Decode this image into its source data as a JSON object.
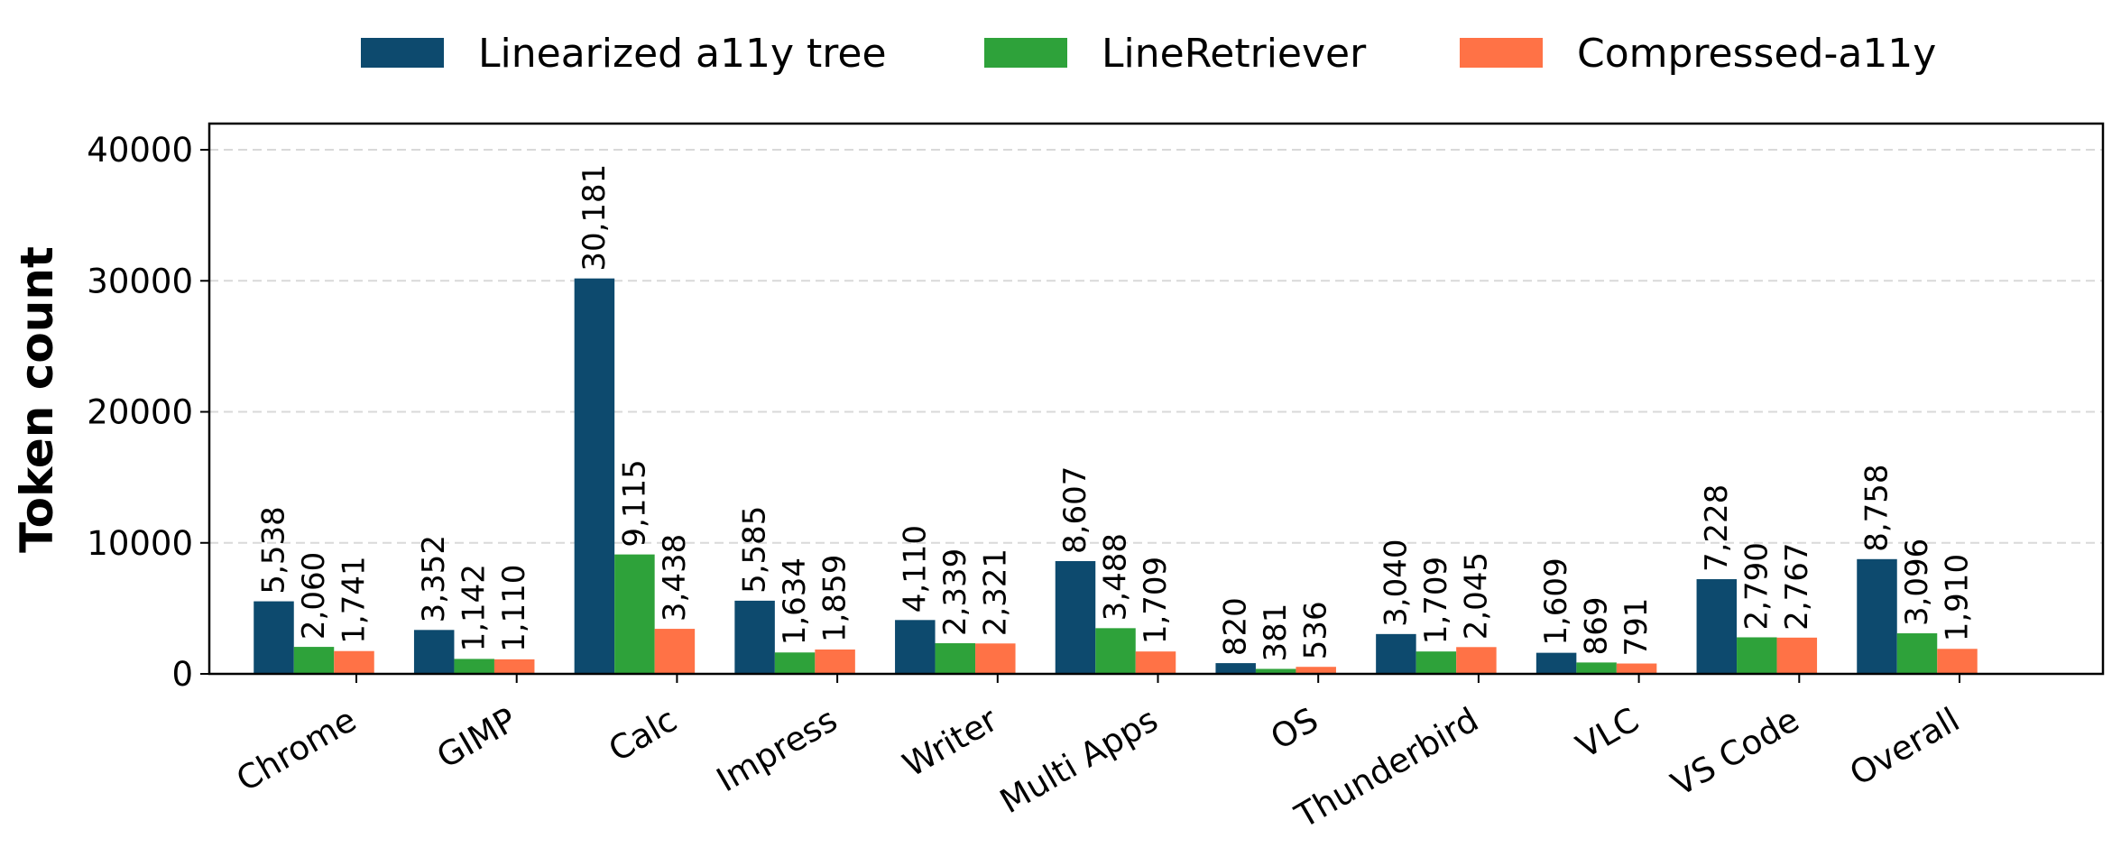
{
  "chart_data": {
    "type": "bar",
    "categories": [
      "Chrome",
      "GIMP",
      "Calc",
      "Impress",
      "Writer",
      "Multi Apps",
      "OS",
      "Thunderbird",
      "VLC",
      "VS Code",
      "Overall"
    ],
    "series": [
      {
        "name": "Linearized a11y tree",
        "color": "#0d4a6e",
        "values": [
          5538,
          3352,
          30181,
          5585,
          4110,
          8607,
          820,
          3040,
          1609,
          7228,
          8758
        ],
        "labels": [
          "5,538",
          "3,352",
          "30,181",
          "5,585",
          "4,110",
          "8,607",
          "820",
          "3,040",
          "1,609",
          "7,228",
          "8,758"
        ]
      },
      {
        "name": "LineRetriever",
        "color": "#2ea23a",
        "values": [
          2060,
          1142,
          9115,
          1634,
          2339,
          3488,
          381,
          1709,
          869,
          2790,
          3096
        ],
        "labels": [
          "2,060",
          "1,142",
          "9,115",
          "1,634",
          "2,339",
          "3,488",
          "381",
          "1,709",
          "869",
          "2,790",
          "3,096"
        ]
      },
      {
        "name": "Compressed-a11y",
        "color": "#ff7246",
        "values": [
          1741,
          1110,
          3438,
          1859,
          2321,
          1709,
          536,
          2045,
          791,
          2767,
          1910
        ],
        "labels": [
          "1,741",
          "1,110",
          "3,438",
          "1,859",
          "2,321",
          "1,709",
          "536",
          "2,045",
          "791",
          "2,767",
          "1,910"
        ]
      }
    ],
    "ylabel": "Token count",
    "xlabel": "",
    "ylim": [
      0,
      42000
    ],
    "yticks": [
      0,
      10000,
      20000,
      30000,
      40000
    ],
    "grid": "horizontal dashed",
    "legend_position": "top-center"
  }
}
